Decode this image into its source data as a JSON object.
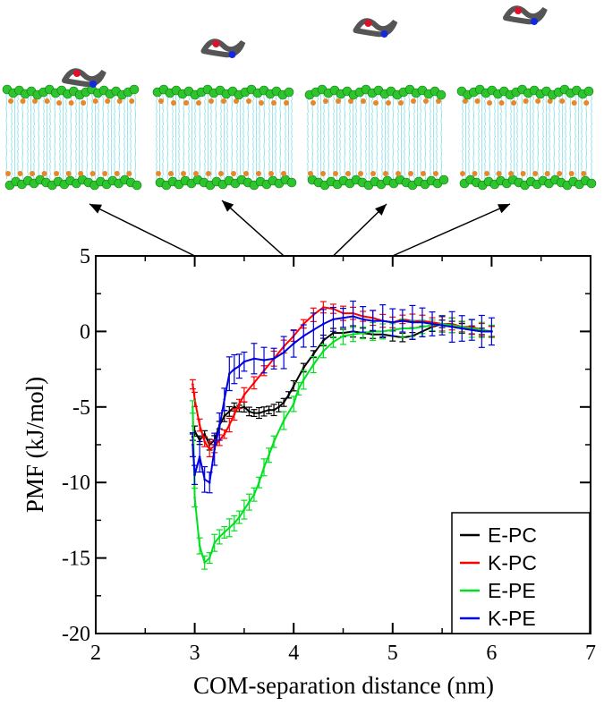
{
  "chart_data": {
    "type": "line",
    "xlabel": "COM-separation distance (nm)",
    "ylabel": "PMF (kJ/mol)",
    "xlim": [
      2,
      7
    ],
    "ylim": [
      -20,
      5
    ],
    "xticks": [
      2,
      3,
      4,
      5,
      6,
      7
    ],
    "yticks": [
      5,
      0,
      -5,
      -10,
      -15,
      -20
    ],
    "xtick_labels": [
      "2",
      "3",
      "4",
      "5",
      "6",
      "7"
    ],
    "ytick_labels": [
      "5",
      "0",
      "-5",
      "-10",
      "-15",
      "-20"
    ],
    "legend_position": "bottom-right",
    "snapshot_positions_nm": [
      3.0,
      3.9,
      4.4,
      5.0
    ],
    "series": [
      {
        "name": "E-PC",
        "color": "#000000",
        "err": 0.3,
        "x": [
          2.98,
          3.0,
          3.05,
          3.1,
          3.15,
          3.2,
          3.25,
          3.3,
          3.35,
          3.4,
          3.45,
          3.5,
          3.55,
          3.6,
          3.65,
          3.7,
          3.75,
          3.8,
          3.85,
          3.9,
          3.95,
          4.0,
          4.1,
          4.2,
          4.3,
          4.4,
          4.5,
          4.6,
          4.7,
          4.8,
          4.9,
          5.0,
          5.1,
          5.2,
          5.3,
          5.4,
          5.5,
          5.6,
          5.7,
          5.8,
          5.9,
          6.0
        ],
        "y": [
          -7.0,
          -6.6,
          -7.2,
          -6.8,
          -7.5,
          -7.2,
          -6.2,
          -5.6,
          -5.3,
          -5.0,
          -5.1,
          -5.0,
          -5.3,
          -5.4,
          -5.4,
          -5.3,
          -5.2,
          -5.2,
          -5.0,
          -4.7,
          -4.2,
          -3.6,
          -2.4,
          -1.5,
          -0.6,
          -0.1,
          -0.1,
          0.0,
          -0.1,
          -0.2,
          -0.2,
          -0.3,
          -0.4,
          -0.3,
          0.0,
          0.3,
          0.5,
          0.3,
          0.2,
          0.1,
          0.0,
          0.0
        ]
      },
      {
        "name": "K-PC",
        "color": "#ff0000",
        "err": 0.4,
        "x": [
          2.98,
          3.0,
          3.05,
          3.1,
          3.15,
          3.2,
          3.25,
          3.3,
          3.35,
          3.4,
          3.45,
          3.5,
          3.6,
          3.7,
          3.8,
          3.9,
          4.0,
          4.1,
          4.2,
          4.3,
          4.4,
          4.5,
          4.6,
          4.7,
          4.8,
          4.9,
          5.0,
          5.1,
          5.2,
          5.3,
          5.4,
          5.5,
          5.6,
          5.7,
          5.8,
          5.9,
          6.0
        ],
        "y": [
          -3.5,
          -4.5,
          -6.2,
          -7.3,
          -7.8,
          -7.6,
          -7.2,
          -6.8,
          -6.2,
          -5.5,
          -4.8,
          -4.2,
          -3.4,
          -2.6,
          -1.8,
          -1.0,
          -0.3,
          0.5,
          1.1,
          1.6,
          1.5,
          1.2,
          1.2,
          1.0,
          0.9,
          0.7,
          0.6,
          0.8,
          0.7,
          0.7,
          0.6,
          0.5,
          0.5,
          0.3,
          0.3,
          0.1,
          0.0
        ]
      },
      {
        "name": "E-PE",
        "color": "#00e020",
        "err": 0.5,
        "x": [
          2.98,
          3.0,
          3.05,
          3.1,
          3.15,
          3.2,
          3.25,
          3.3,
          3.35,
          3.4,
          3.45,
          3.5,
          3.55,
          3.6,
          3.65,
          3.7,
          3.75,
          3.8,
          3.9,
          4.0,
          4.05,
          4.1,
          4.2,
          4.3,
          4.4,
          4.5,
          4.6,
          4.7,
          4.8,
          4.9,
          5.0,
          5.1,
          5.2,
          5.3,
          5.4,
          5.5,
          5.6,
          5.7,
          5.8,
          5.9,
          6.0
        ],
        "y": [
          -5.0,
          -11.0,
          -14.2,
          -15.3,
          -15.0,
          -14.0,
          -13.6,
          -13.3,
          -13.0,
          -12.7,
          -12.3,
          -11.8,
          -11.3,
          -10.8,
          -10.0,
          -9.0,
          -8.2,
          -7.3,
          -5.9,
          -4.8,
          -3.8,
          -3.2,
          -2.2,
          -1.3,
          -0.7,
          -0.3,
          -0.2,
          -0.1,
          0.0,
          0.0,
          0.1,
          0.2,
          0.2,
          0.3,
          0.4,
          0.5,
          0.4,
          0.3,
          0.2,
          0.1,
          0.0
        ]
      },
      {
        "name": "K-PE",
        "color": "#0000e0",
        "err": 0.9,
        "x": [
          2.98,
          3.0,
          3.05,
          3.1,
          3.15,
          3.2,
          3.25,
          3.3,
          3.35,
          3.4,
          3.45,
          3.5,
          3.6,
          3.7,
          3.8,
          3.9,
          4.0,
          4.1,
          4.2,
          4.3,
          4.4,
          4.5,
          4.6,
          4.7,
          4.8,
          4.9,
          5.0,
          5.1,
          5.2,
          5.3,
          5.4,
          5.5,
          5.6,
          5.7,
          5.8,
          5.9,
          6.0
        ],
        "y": [
          -7.5,
          -9.5,
          -8.3,
          -9.8,
          -10.0,
          -7.8,
          -6.3,
          -4.5,
          -2.8,
          -2.5,
          -2.3,
          -2.0,
          -1.8,
          -1.9,
          -1.8,
          -1.4,
          -0.8,
          -0.3,
          0.1,
          0.5,
          0.8,
          0.9,
          1.0,
          0.8,
          0.7,
          0.7,
          0.6,
          0.7,
          0.6,
          0.6,
          0.5,
          0.4,
          0.3,
          0.2,
          0.1,
          0.0,
          0.0
        ]
      }
    ]
  }
}
